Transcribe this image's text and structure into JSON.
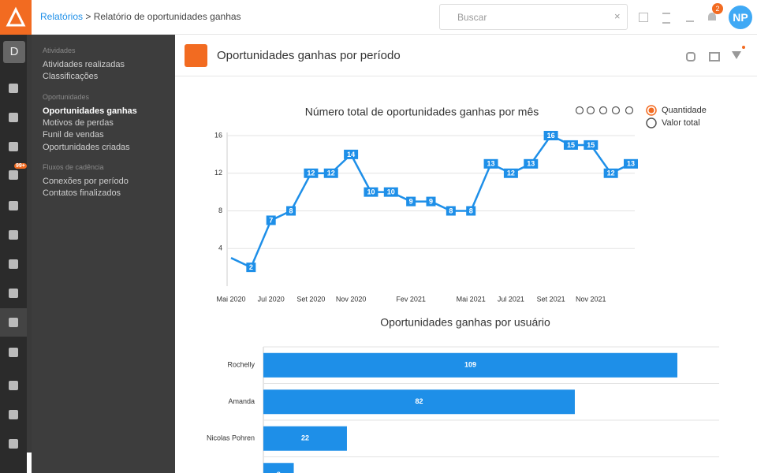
{
  "header": {
    "breadcrumb_link": "Relatórios",
    "separator": ">",
    "breadcrumb_current": "Relatório de oportunidades ganhas",
    "search_placeholder": "Buscar",
    "notification_count": "2",
    "avatar": "NP"
  },
  "sidebar": {
    "workspace": "D",
    "mail_badge": "99+"
  },
  "menu": {
    "sections": [
      {
        "title": "Atividades",
        "items": [
          {
            "label": "Atividades realizadas"
          },
          {
            "label": "Classificações"
          }
        ]
      },
      {
        "title": "Oportunidades",
        "items": [
          {
            "label": "Oportunidades ganhas",
            "selected": true
          },
          {
            "label": "Motivos de perdas"
          },
          {
            "label": "Funil de vendas"
          },
          {
            "label": "Oportunidades criadas"
          }
        ]
      },
      {
        "title": "Fluxos de cadência",
        "items": [
          {
            "label": "Conexões por período"
          },
          {
            "label": "Contatos finalizados"
          }
        ]
      }
    ]
  },
  "page": {
    "title": "Oportunidades ganhas por período"
  },
  "charts": [
    {
      "type": "line",
      "title": "Número total de oportunidades ganhas por mês",
      "color": "#1e8fe8",
      "categories": [
        "Mai 2020",
        null,
        "Jul 2020",
        null,
        "Set 2020",
        null,
        "Nov 2020",
        null,
        null,
        "Fev 2021",
        null,
        null,
        "Mai 2021",
        null,
        "Jul 2021",
        null,
        "Set 2021",
        null,
        "Nov 2021",
        null,
        null
      ],
      "values": [
        3,
        2,
        7,
        8,
        12,
        12,
        14,
        10,
        10,
        9,
        9,
        8,
        8,
        13,
        12,
        13,
        16,
        15,
        15,
        12,
        13
      ],
      "value_labels": [
        null,
        "2",
        "7",
        "8",
        "12",
        "12",
        "14",
        "10",
        "10",
        "9",
        "9",
        "8",
        "8",
        "13",
        "12",
        "13",
        "16",
        "15",
        "15",
        "12",
        "13"
      ],
      "ylim": [
        0,
        16
      ],
      "yticks": [
        4,
        8,
        12,
        16
      ],
      "grid": true,
      "legend": [
        {
          "name": "Quantidade",
          "selected": true
        },
        {
          "name": "Valor total"
        }
      ]
    },
    {
      "type": "hbar",
      "title": "Oportunidades ganhas por usuário",
      "color": "#1e8fe8",
      "categories": [
        "Rochelly",
        "Amanda",
        "Nicolas Pohren",
        null
      ],
      "values": [
        109,
        82,
        22,
        8
      ],
      "xlim": [
        0,
        120
      ],
      "grid": true
    }
  ]
}
